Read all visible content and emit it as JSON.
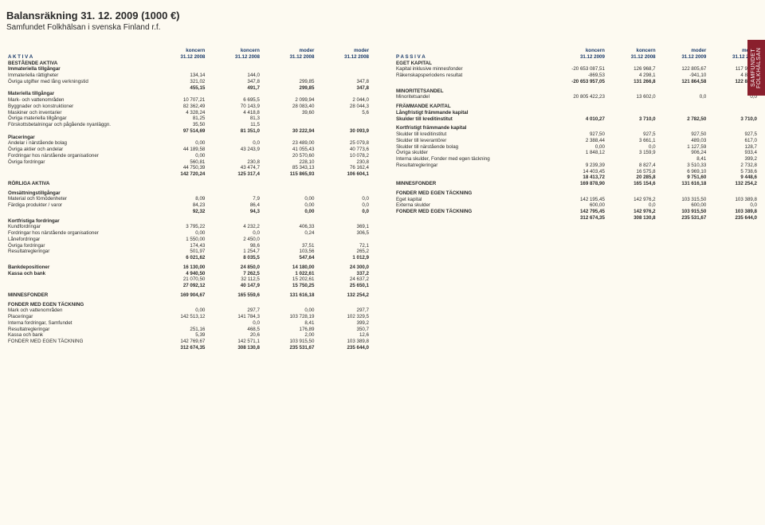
{
  "title": "Balansräkning 31. 12. 2009 (1000 €)",
  "subtitle": "Samfundet Folkhälsan i svenska Finland r.f.",
  "side_tab": "SAMFUNDET FOLKHÄLSAN",
  "col_heads": {
    "c1": "koncern",
    "c2": "koncern",
    "c3": "moder",
    "c4": "moder",
    "d1": "31.12 2008",
    "d2": "31.12 2008",
    "d3": "31.12 2008",
    "d4": "31.12 2008",
    "d1r": "31.12 2009",
    "d2r": "31.12 2008",
    "d3r": "31.12 2009",
    "d4r": "31.12 2008"
  },
  "left": {
    "aktiva": "A K T I V A",
    "bestaende": "BESTÅENDE AKTIVA",
    "immat_t": "Immateriella tillgångar",
    "immat_r": {
      "l": "Immateriella rättigheter",
      "v": [
        "134,14",
        "144,0",
        "",
        ""
      ]
    },
    "ovr_utg": {
      "l": "Övriga utgifter med lång verkningstid",
      "v": [
        "321,02",
        "347,8",
        "299,85",
        "347,8"
      ]
    },
    "immat_sum": {
      "v": [
        "455,15",
        "491,7",
        "299,85",
        "347,8"
      ]
    },
    "mat_t": "Materiella tillgångar",
    "mark": {
      "l": "Mark- och vattenområden",
      "v": [
        "10 707,21",
        "6 695,5",
        "2 099,94",
        "2 044,0"
      ]
    },
    "bygg": {
      "l": "Byggnader och konstruktioner",
      "v": [
        "82 362,49",
        "70 143,9",
        "28 083,40",
        "28 044,3"
      ]
    },
    "mask": {
      "l": "Maskiner och inventarier",
      "v": [
        "4 328,24",
        "4 418,8",
        "39,60",
        "5,6"
      ]
    },
    "ovr_mat": {
      "l": "Övriga materiella tillgångar",
      "v": [
        "81,25",
        "81,3",
        "",
        ""
      ]
    },
    "forsk": {
      "l": "Förskottsbetalningar och pågående nyanläggn.",
      "v": [
        "35,50",
        "11,5",
        "",
        ""
      ]
    },
    "mat_sum": {
      "v": [
        "97 514,69",
        "81 351,0",
        "30 222,94",
        "30 093,9"
      ]
    },
    "plac_t": "Placeringar",
    "andel_n": {
      "l": "Andelar i närstående bolag",
      "v": [
        "0,00",
        "0,0",
        "23 489,00",
        "25 079,8"
      ]
    },
    "ovr_akt": {
      "l": "Övriga aktier och andelar",
      "v": [
        "44 189,58",
        "43 243,9",
        "41 055,43",
        "40 773,6"
      ]
    },
    "fordr_n": {
      "l": "Fordringar hos närstående organisationer",
      "v": [
        "0,00",
        "",
        "20 570,60",
        "10 078,2"
      ]
    },
    "ovr_f": {
      "l": "Övriga fordringar",
      "v": [
        "560,81",
        "230,8",
        "228,10",
        "230,8"
      ]
    },
    "plac_sub": {
      "v": [
        "44 750,39",
        "43 474,7",
        "85 343,13",
        "76 162,4"
      ]
    },
    "plac_sum": {
      "v": [
        "142 720,24",
        "125 317,4",
        "115 865,93",
        "106 604,1"
      ]
    },
    "rorliga": "RÖRLIGA AKTIVA",
    "oms_t": "Omsättningstillgångar",
    "material": {
      "l": "Material och förnödenheter",
      "v": [
        "8,09",
        "7,9",
        "0,00",
        "0,0"
      ]
    },
    "fardiga": {
      "l": "Färdiga produkter / varor",
      "v": [
        "84,23",
        "86,4",
        "0,00",
        "0,0"
      ]
    },
    "oms_sum": {
      "v": [
        "92,32",
        "94,3",
        "0,00",
        "0,0"
      ]
    },
    "kort_t": "Kortfristiga fordringar",
    "kund": {
      "l": "Kundfordringar",
      "v": [
        "3 795,22",
        "4 232,2",
        "406,33",
        "369,1"
      ]
    },
    "fordr_no": {
      "l": "Fordringar hos närstående organisationer",
      "v": [
        "0,00",
        "0,0",
        "0,24",
        "306,5"
      ]
    },
    "lanef": {
      "l": "Lånefordringar",
      "v": [
        "1 550,00",
        "2 450,0",
        "",
        ""
      ]
    },
    "ovr_fo": {
      "l": "Övriga fordringar",
      "v": [
        "174,43",
        "98,6",
        "37,51",
        "72,1"
      ]
    },
    "result": {
      "l": "Resultatregleringar",
      "v": [
        "501,97",
        "1 254,7",
        "103,56",
        "265,2"
      ]
    },
    "kort_sum": {
      "v": [
        "6 021,62",
        "8 035,5",
        "547,64",
        "1 012,9"
      ]
    },
    "bank": {
      "l": "Bankdepositioner",
      "v": [
        "16 130,00",
        "24 850,0",
        "14 180,00",
        "24 300,0"
      ]
    },
    "kassa": {
      "l": "Kassa och bank",
      "v": [
        "4 940,50",
        "7 262,5",
        "1 022,61",
        "337,2"
      ]
    },
    "bk_sub": {
      "v": [
        "21 070,50",
        "32 112,5",
        "15 202,61",
        "24 637,2"
      ]
    },
    "bk_sum": {
      "v": [
        "27 092,12",
        "40 147,9",
        "15 750,25",
        "25 650,1"
      ]
    },
    "minnes": {
      "l": "MINNESFONDER",
      "v": [
        "169 904,67",
        "165 559,6",
        "131 616,18",
        "132 254,2"
      ]
    },
    "fonder_t": "FONDER MED EGEN TÄCKNING",
    "f_mark": {
      "l": "Mark och vattenområden",
      "v": [
        "0,00",
        "297,7",
        "0,00",
        "297,7"
      ]
    },
    "f_plac": {
      "l": "Placeringar",
      "v": [
        "142 513,12",
        "141 784,3",
        "103 728,19",
        "102 329,5"
      ]
    },
    "f_int": {
      "l": "Interna fordringar, Samfundet",
      "v": [
        "",
        "0,0",
        "8,41",
        "399,2"
      ]
    },
    "f_res": {
      "l": "Resultatregleringar",
      "v": [
        "251,16",
        "468,5",
        "176,89",
        "350,7"
      ]
    },
    "f_kassa": {
      "l": "Kassa och bank",
      "v": [
        "5,39",
        "20,6",
        "2,00",
        "12,6"
      ]
    },
    "f_fonder": {
      "l": "FONDER MED EGEN TÄCKNING",
      "v": [
        "142 769,67",
        "142 571,1",
        "103 915,50",
        "103 389,8"
      ]
    },
    "left_total": {
      "v": [
        "312 674,35",
        "308 130,8",
        "235 531,67",
        "235 644,0"
      ]
    }
  },
  "right": {
    "passiva": "P A S S I V A",
    "eget_t": "EGET KAPITAL",
    "kap": {
      "l": "Kapital inklusive minnesfonder",
      "v": [
        "-20 653 087,51",
        "126 968,7",
        "122 805,67",
        "117 906,3"
      ]
    },
    "raken": {
      "l": "Räkenskapsperiodens resultat",
      "v": [
        "-869,53",
        "4 298,1",
        "-941,10",
        "4 899,4"
      ]
    },
    "eget_sum": {
      "v": [
        "-20 653 957,05",
        "131 266,8",
        "121 864,58",
        "122 805,7"
      ]
    },
    "min_t": "MINORITETSANDEL",
    "min": {
      "l": "Minoritetsandel",
      "v": [
        "20 805 422,23",
        "13 602,0",
        "0,0",
        "0,0"
      ]
    },
    "fram_t": "FRÄMMANDE KAPITAL",
    "langf_t": "Långfristigt främmande kapital",
    "sk_kred_l": {
      "l": "Skulder till kreditinstitut",
      "v": [
        "4 010,27",
        "3 710,0",
        "2 782,50",
        "3 710,0"
      ]
    },
    "kortf_t": "Kortfristigt främmande kapital",
    "sk_kred": {
      "l": "Skulder till kreditinstitut",
      "v": [
        "927,50",
        "927,5",
        "927,50",
        "927,5"
      ]
    },
    "sk_lev": {
      "l": "Skulder till leverantörer",
      "v": [
        "2 388,44",
        "3 661,1",
        "489,03",
        "617,0"
      ]
    },
    "sk_nar": {
      "l": "Skulder till närstående bolag",
      "v": [
        "0,00",
        "0,0",
        "1 127,59",
        "128,7"
      ]
    },
    "ovr_sk": {
      "l": "Övriga skulder",
      "v": [
        "1 848,12",
        "3 159,9",
        "906,24",
        "933,4"
      ]
    },
    "int_sk": {
      "l": "Interna skulder, Fonder med egen täckning",
      "v": [
        "",
        "",
        "8,41",
        "399,2"
      ]
    },
    "res_r": {
      "l": "Resultatregleringar",
      "v": [
        "9 239,39",
        "8 827,4",
        "3 510,33",
        "2 732,8"
      ]
    },
    "sub1": {
      "v": [
        "14 403,45",
        "16 575,8",
        "6 969,10",
        "5 738,6"
      ]
    },
    "sub2": {
      "v": [
        "18 413,72",
        "20 285,8",
        "9 751,60",
        "9 448,6"
      ]
    },
    "minnes_r": {
      "l": "MINNESFONDER",
      "v": [
        "169 878,90",
        "165 154,6",
        "131 616,18",
        "132 254,2"
      ]
    },
    "fondermet_t": "FONDER MED EGEN TÄCKNING",
    "eget_k": {
      "l": "Eget kapital",
      "v": [
        "142 195,45",
        "142 976,2",
        "103 315,50",
        "103 389,8"
      ]
    },
    "ext_sk": {
      "l": "Externa skulder",
      "v": [
        "600,00",
        "0,0",
        "600,00",
        "0,0"
      ]
    },
    "fmet": {
      "l": "FONDER MED EGEN TÄCKNING",
      "v": [
        "142 795,45",
        "142 976,2",
        "103 915,50",
        "103 389,8"
      ]
    },
    "right_total": {
      "v": [
        "312 674,35",
        "308 130,8",
        "235 531,67",
        "235 644,0"
      ]
    }
  }
}
